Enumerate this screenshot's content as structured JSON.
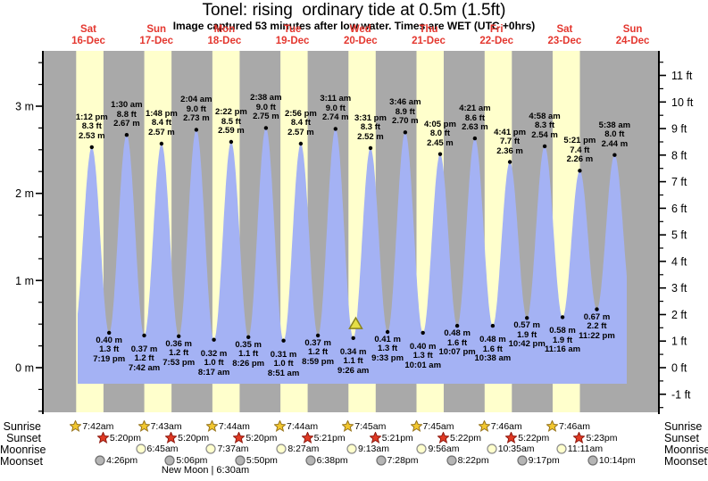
{
  "chart": {
    "title": "Tonel: rising  ordinary tide at 0.5m (1.5ft)",
    "subtitle": "Image captured 53 minutes after low water. Times are WET (UTC +0hrs)"
  },
  "colors": {
    "day_label_red": "#e4372f",
    "night_band": "#a9a9a9",
    "daylight_band": "#ffffcc",
    "tide_fill": "#a4b2f4",
    "axis": "#000000",
    "marker_fill": "#e6df45",
    "marker_stroke": "#89831f",
    "sunrise_star": "#f2c72e",
    "sunrise_star_stroke": "#97741c",
    "sunset_star": "#e03a24",
    "sunset_star_stroke": "#8f1a10",
    "moonrise_fill": "#ffffcc",
    "moonrise_stroke": "#8a8a8a",
    "moonset_fill": "#b5b5b5",
    "moonset_stroke": "#6e6e6e"
  },
  "days": [
    {
      "name": "Sat",
      "date": "16-Dec"
    },
    {
      "name": "Sun",
      "date": "17-Dec"
    },
    {
      "name": "Mon",
      "date": "18-Dec"
    },
    {
      "name": "Tue",
      "date": "19-Dec"
    },
    {
      "name": "Wed",
      "date": "20-Dec"
    },
    {
      "name": "Thu",
      "date": "21-Dec"
    },
    {
      "name": "Fri",
      "date": "22-Dec"
    },
    {
      "name": "Sat",
      "date": "23-Dec"
    },
    {
      "name": "Sun",
      "date": "24-Dec"
    }
  ],
  "axes": {
    "left_labels": [
      "3 m",
      "2 m",
      "1 m",
      "0 m"
    ],
    "left_values_m": [
      3,
      2,
      1,
      0
    ],
    "right_labels": [
      "11 ft",
      "10 ft",
      "9 ft",
      "8 ft",
      "7 ft",
      "6 ft",
      "5 ft",
      "4 ft",
      "3 ft",
      "2 ft",
      "1 ft",
      "0 ft",
      "-1 ft"
    ],
    "right_values_ft": [
      11,
      10,
      9,
      8,
      7,
      6,
      5,
      4,
      3,
      2,
      1,
      0,
      -1
    ]
  },
  "chart_data": {
    "type": "area",
    "series_name": "tide height",
    "x_days": [
      "Sat 16-Dec",
      "Sun 17-Dec",
      "Mon 18-Dec",
      "Tue 19-Dec",
      "Wed 20-Dec",
      "Thu 21-Dec",
      "Fri 22-Dec",
      "Sat 23-Dec",
      "Sun 24-Dec"
    ],
    "ylim_m": [
      -0.5,
      3.6
    ],
    "ylim_ft": [
      -1.7,
      11.9
    ],
    "highs": [
      {
        "day": 0,
        "time": "1:12 pm",
        "ft": "8.3 ft",
        "m": "2.53 m"
      },
      {
        "day": 1,
        "time": "1:30 am",
        "ft": "8.8 ft",
        "m": "2.67 m"
      },
      {
        "day": 1,
        "time": "1:48 pm",
        "ft": "8.4 ft",
        "m": "2.57 m"
      },
      {
        "day": 2,
        "time": "2:04 am",
        "ft": "9.0 ft",
        "m": "2.73 m"
      },
      {
        "day": 2,
        "time": "2:22 pm",
        "ft": "8.5 ft",
        "m": "2.59 m"
      },
      {
        "day": 3,
        "time": "2:38 am",
        "ft": "9.0 ft",
        "m": "2.75 m"
      },
      {
        "day": 3,
        "time": "2:56 pm",
        "ft": "8.4 ft",
        "m": "2.57 m"
      },
      {
        "day": 4,
        "time": "3:11 am",
        "ft": "9.0 ft",
        "m": "2.74 m"
      },
      {
        "day": 4,
        "time": "3:31 pm",
        "ft": "8.3 ft",
        "m": "2.52 m"
      },
      {
        "day": 5,
        "time": "3:46 am",
        "ft": "8.9 ft",
        "m": "2.70 m"
      },
      {
        "day": 5,
        "time": "4:05 pm",
        "ft": "8.0 ft",
        "m": "2.45 m"
      },
      {
        "day": 6,
        "time": "4:21 am",
        "ft": "8.6 ft",
        "m": "2.63 m"
      },
      {
        "day": 6,
        "time": "4:41 pm",
        "ft": "7.7 ft",
        "m": "2.36 m"
      },
      {
        "day": 7,
        "time": "4:58 am",
        "ft": "8.3 ft",
        "m": "2.54 m"
      },
      {
        "day": 7,
        "time": "5:21 pm",
        "ft": "7.4 ft",
        "m": "2.26 m"
      },
      {
        "day": 8,
        "time": "5:38 am",
        "ft": "8.0 ft",
        "m": "2.44 m"
      }
    ],
    "lows": [
      {
        "day": 0,
        "time": "7:19 pm",
        "ft": "1.3 ft",
        "m": "0.40 m"
      },
      {
        "day": 1,
        "time": "7:42 am",
        "ft": "1.2 ft",
        "m": "0.37 m"
      },
      {
        "day": 1,
        "time": "7:53 pm",
        "ft": "1.2 ft",
        "m": "0.36 m"
      },
      {
        "day": 2,
        "time": "8:17 am",
        "ft": "1.0 ft",
        "m": "0.32 m"
      },
      {
        "day": 2,
        "time": "8:26 pm",
        "ft": "1.1 ft",
        "m": "0.35 m"
      },
      {
        "day": 3,
        "time": "8:51 am",
        "ft": "1.0 ft",
        "m": "0.31 m"
      },
      {
        "day": 3,
        "time": "8:59 pm",
        "ft": "1.2 ft",
        "m": "0.37 m"
      },
      {
        "day": 4,
        "time": "9:26 am",
        "ft": "1.1 ft",
        "m": "0.34 m"
      },
      {
        "day": 4,
        "time": "9:33 pm",
        "ft": "1.3 ft",
        "m": "0.41 m"
      },
      {
        "day": 5,
        "time": "10:01 am",
        "ft": "1.3 ft",
        "m": "0.40 m"
      },
      {
        "day": 5,
        "time": "10:07 pm",
        "ft": "1.6 ft",
        "m": "0.48 m"
      },
      {
        "day": 6,
        "time": "10:38 am",
        "ft": "1.6 ft",
        "m": "0.48 m"
      },
      {
        "day": 6,
        "time": "10:42 pm",
        "ft": "1.9 ft",
        "m": "0.57 m"
      },
      {
        "day": 7,
        "time": "11:16 am",
        "ft": "1.9 ft",
        "m": "0.58 m"
      },
      {
        "day": 7,
        "time": "11:22 pm",
        "ft": "2.2 ft",
        "m": "0.67 m"
      }
    ],
    "current_marker": {
      "day": 4,
      "time": "10:19 am",
      "height_m": 0.5
    }
  },
  "astro": {
    "rows": [
      {
        "label": "Sunrise",
        "icon": "sunrise-star-icon",
        "events": [
          {
            "day": 0,
            "time": "7:42am"
          },
          {
            "day": 1,
            "time": "7:43am"
          },
          {
            "day": 2,
            "time": "7:44am"
          },
          {
            "day": 3,
            "time": "7:44am"
          },
          {
            "day": 4,
            "time": "7:45am"
          },
          {
            "day": 5,
            "time": "7:45am"
          },
          {
            "day": 6,
            "time": "7:46am"
          },
          {
            "day": 7,
            "time": "7:46am"
          }
        ]
      },
      {
        "label": "Sunset",
        "icon": "sunset-star-icon",
        "events": [
          {
            "day": 0,
            "time": "5:20pm"
          },
          {
            "day": 1,
            "time": "5:20pm"
          },
          {
            "day": 2,
            "time": "5:20pm"
          },
          {
            "day": 3,
            "time": "5:21pm"
          },
          {
            "day": 4,
            "time": "5:21pm"
          },
          {
            "day": 5,
            "time": "5:22pm"
          },
          {
            "day": 6,
            "time": "5:22pm"
          },
          {
            "day": 7,
            "time": "5:23pm"
          }
        ]
      },
      {
        "label": "Moonrise",
        "icon": "moonrise-icon",
        "events": [
          {
            "day": 1,
            "time": "6:45am"
          },
          {
            "day": 2,
            "time": "7:37am"
          },
          {
            "day": 3,
            "time": "8:27am"
          },
          {
            "day": 4,
            "time": "9:13am"
          },
          {
            "day": 5,
            "time": "9:56am"
          },
          {
            "day": 6,
            "time": "10:35am"
          },
          {
            "day": 7,
            "time": "11:11am"
          }
        ]
      },
      {
        "label": "Moonset",
        "icon": "moonset-icon",
        "events": [
          {
            "day": 0,
            "time": "4:26pm"
          },
          {
            "day": 1,
            "time": "5:06pm"
          },
          {
            "day": 2,
            "time": "5:50pm"
          },
          {
            "day": 3,
            "time": "6:38pm"
          },
          {
            "day": 4,
            "time": "7:28pm"
          },
          {
            "day": 5,
            "time": "8:22pm"
          },
          {
            "day": 6,
            "time": "9:17pm"
          },
          {
            "day": 7,
            "time": "10:14pm"
          }
        ]
      }
    ],
    "new_moon": "New Moon | 6:30am"
  }
}
